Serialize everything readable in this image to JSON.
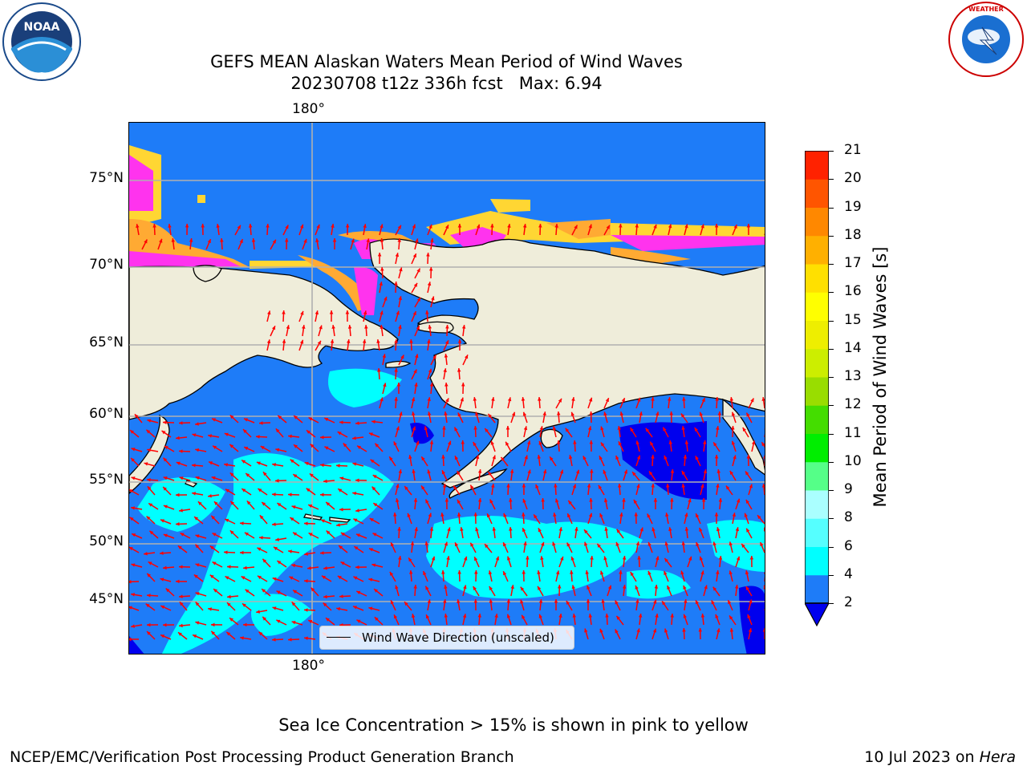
{
  "title": {
    "line1": "GEFS MEAN Alaskan Waters Mean Period of Wind Waves",
    "line2": "20230708 t12z 336h fcst   Max: 6.94"
  },
  "logos": {
    "left": {
      "name": "noaa-logo",
      "text": "NOAA",
      "ring_text": "NATIONAL OCEANIC AND ATMOSPHERIC ADMINISTRATION · U.S. DEPARTMENT OF COMMERCE"
    },
    "right": {
      "name": "nws-logo",
      "ring_text": "NATIONAL WEATHER SERVICE"
    }
  },
  "map": {
    "lon_top_label": "180°",
    "lon_bottom_label": "180°",
    "lat_labels": [
      "75°N",
      "70°N",
      "65°N",
      "60°N",
      "55°N",
      "50°N",
      "45°N"
    ],
    "legend_label": "Wind Wave Direction (unscaled)",
    "colors": {
      "land": "#efedda",
      "water_2_4": "#1e7cf8",
      "water_4_6": "#00ffff",
      "water_under_2": "#0000ee",
      "arrow": "#ff0000",
      "ice_pink": "#ff33ee",
      "ice_orange": "#ffaa33",
      "ice_yellow": "#ffd633"
    }
  },
  "colorbar": {
    "label": "Mean Period of Wind Waves [s]",
    "ticks": [
      "2",
      "4",
      "6",
      "8",
      "9",
      "10",
      "11",
      "12",
      "13",
      "14",
      "15",
      "16",
      "17",
      "18",
      "19",
      "20",
      "21"
    ],
    "colors": [
      "#1e7cf8",
      "#00ffff",
      "#55ffff",
      "#aaffff",
      "#55ff88",
      "#00ee00",
      "#44dd00",
      "#99dd00",
      "#ccee00",
      "#eeee00",
      "#ffff00",
      "#ffe000",
      "#ffb000",
      "#ff8800",
      "#ff5500",
      "#ff2200",
      "#ff0000"
    ],
    "under_color": "#0000ee"
  },
  "footer": {
    "note": "Sea Ice Concentration > 15% is shown in pink to yellow",
    "left": "NCEP/EMC/Verification Post Processing Product Generation Branch",
    "right_date": "10 Jul 2023 on ",
    "right_machine": "Hera"
  }
}
